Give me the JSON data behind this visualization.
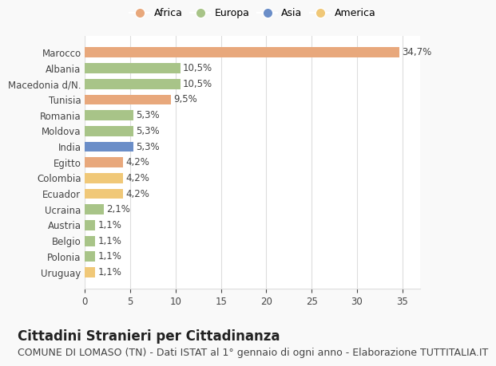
{
  "countries": [
    "Marocco",
    "Albania",
    "Macedonia d/N.",
    "Tunisia",
    "Romania",
    "Moldova",
    "India",
    "Egitto",
    "Colombia",
    "Ecuador",
    "Ucraina",
    "Austria",
    "Belgio",
    "Polonia",
    "Uruguay"
  ],
  "values": [
    34.7,
    10.5,
    10.5,
    9.5,
    5.3,
    5.3,
    5.3,
    4.2,
    4.2,
    4.2,
    2.1,
    1.1,
    1.1,
    1.1,
    1.1
  ],
  "labels": [
    "34,7%",
    "10,5%",
    "10,5%",
    "9,5%",
    "5,3%",
    "5,3%",
    "5,3%",
    "4,2%",
    "4,2%",
    "4,2%",
    "2,1%",
    "1,1%",
    "1,1%",
    "1,1%",
    "1,1%"
  ],
  "continents": [
    "Africa",
    "Europa",
    "Europa",
    "Africa",
    "Europa",
    "Europa",
    "Asia",
    "Africa",
    "America",
    "America",
    "Europa",
    "Europa",
    "Europa",
    "Europa",
    "America"
  ],
  "colors": {
    "Africa": "#E8A87C",
    "Europa": "#A8C488",
    "Asia": "#6B8EC8",
    "America": "#F0C878"
  },
  "legend_order": [
    "Africa",
    "Europa",
    "Asia",
    "America"
  ],
  "title": "Cittadini Stranieri per Cittadinanza",
  "subtitle": "COMUNE DI LOMASO (TN) - Dati ISTAT al 1° gennaio di ogni anno - Elaborazione TUTTITALIA.IT",
  "xlim": [
    0,
    37
  ],
  "xticks": [
    0,
    5,
    10,
    15,
    20,
    25,
    30,
    35
  ],
  "background_color": "#f9f9f9",
  "bar_background": "#ffffff",
  "grid_color": "#dddddd",
  "title_fontsize": 12,
  "subtitle_fontsize": 9,
  "label_fontsize": 8.5,
  "tick_fontsize": 8.5,
  "legend_fontsize": 9
}
